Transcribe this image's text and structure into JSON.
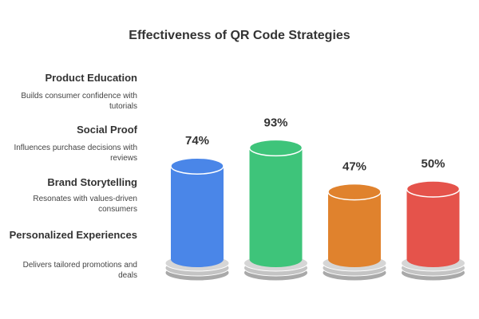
{
  "chart_data": {
    "type": "cylinder-bar",
    "title": "Effectiveness of QR Code Strategies",
    "categories": [
      "Product Education",
      "Social Proof",
      "Brand Storytelling",
      "Personalized Experiences"
    ],
    "descriptions": [
      "Builds consumer confidence with tutorials",
      "Influences purchase decisions with reviews",
      "Resonates with values-driven consumers",
      "Delivers tailored promotions and deals"
    ],
    "values": [
      74,
      93,
      47,
      50
    ],
    "value_labels": [
      "74%",
      "93%",
      "47%",
      "50%"
    ],
    "colors": [
      "#4a86e8",
      "#3ec47a",
      "#e0822d",
      "#e5534b"
    ]
  }
}
